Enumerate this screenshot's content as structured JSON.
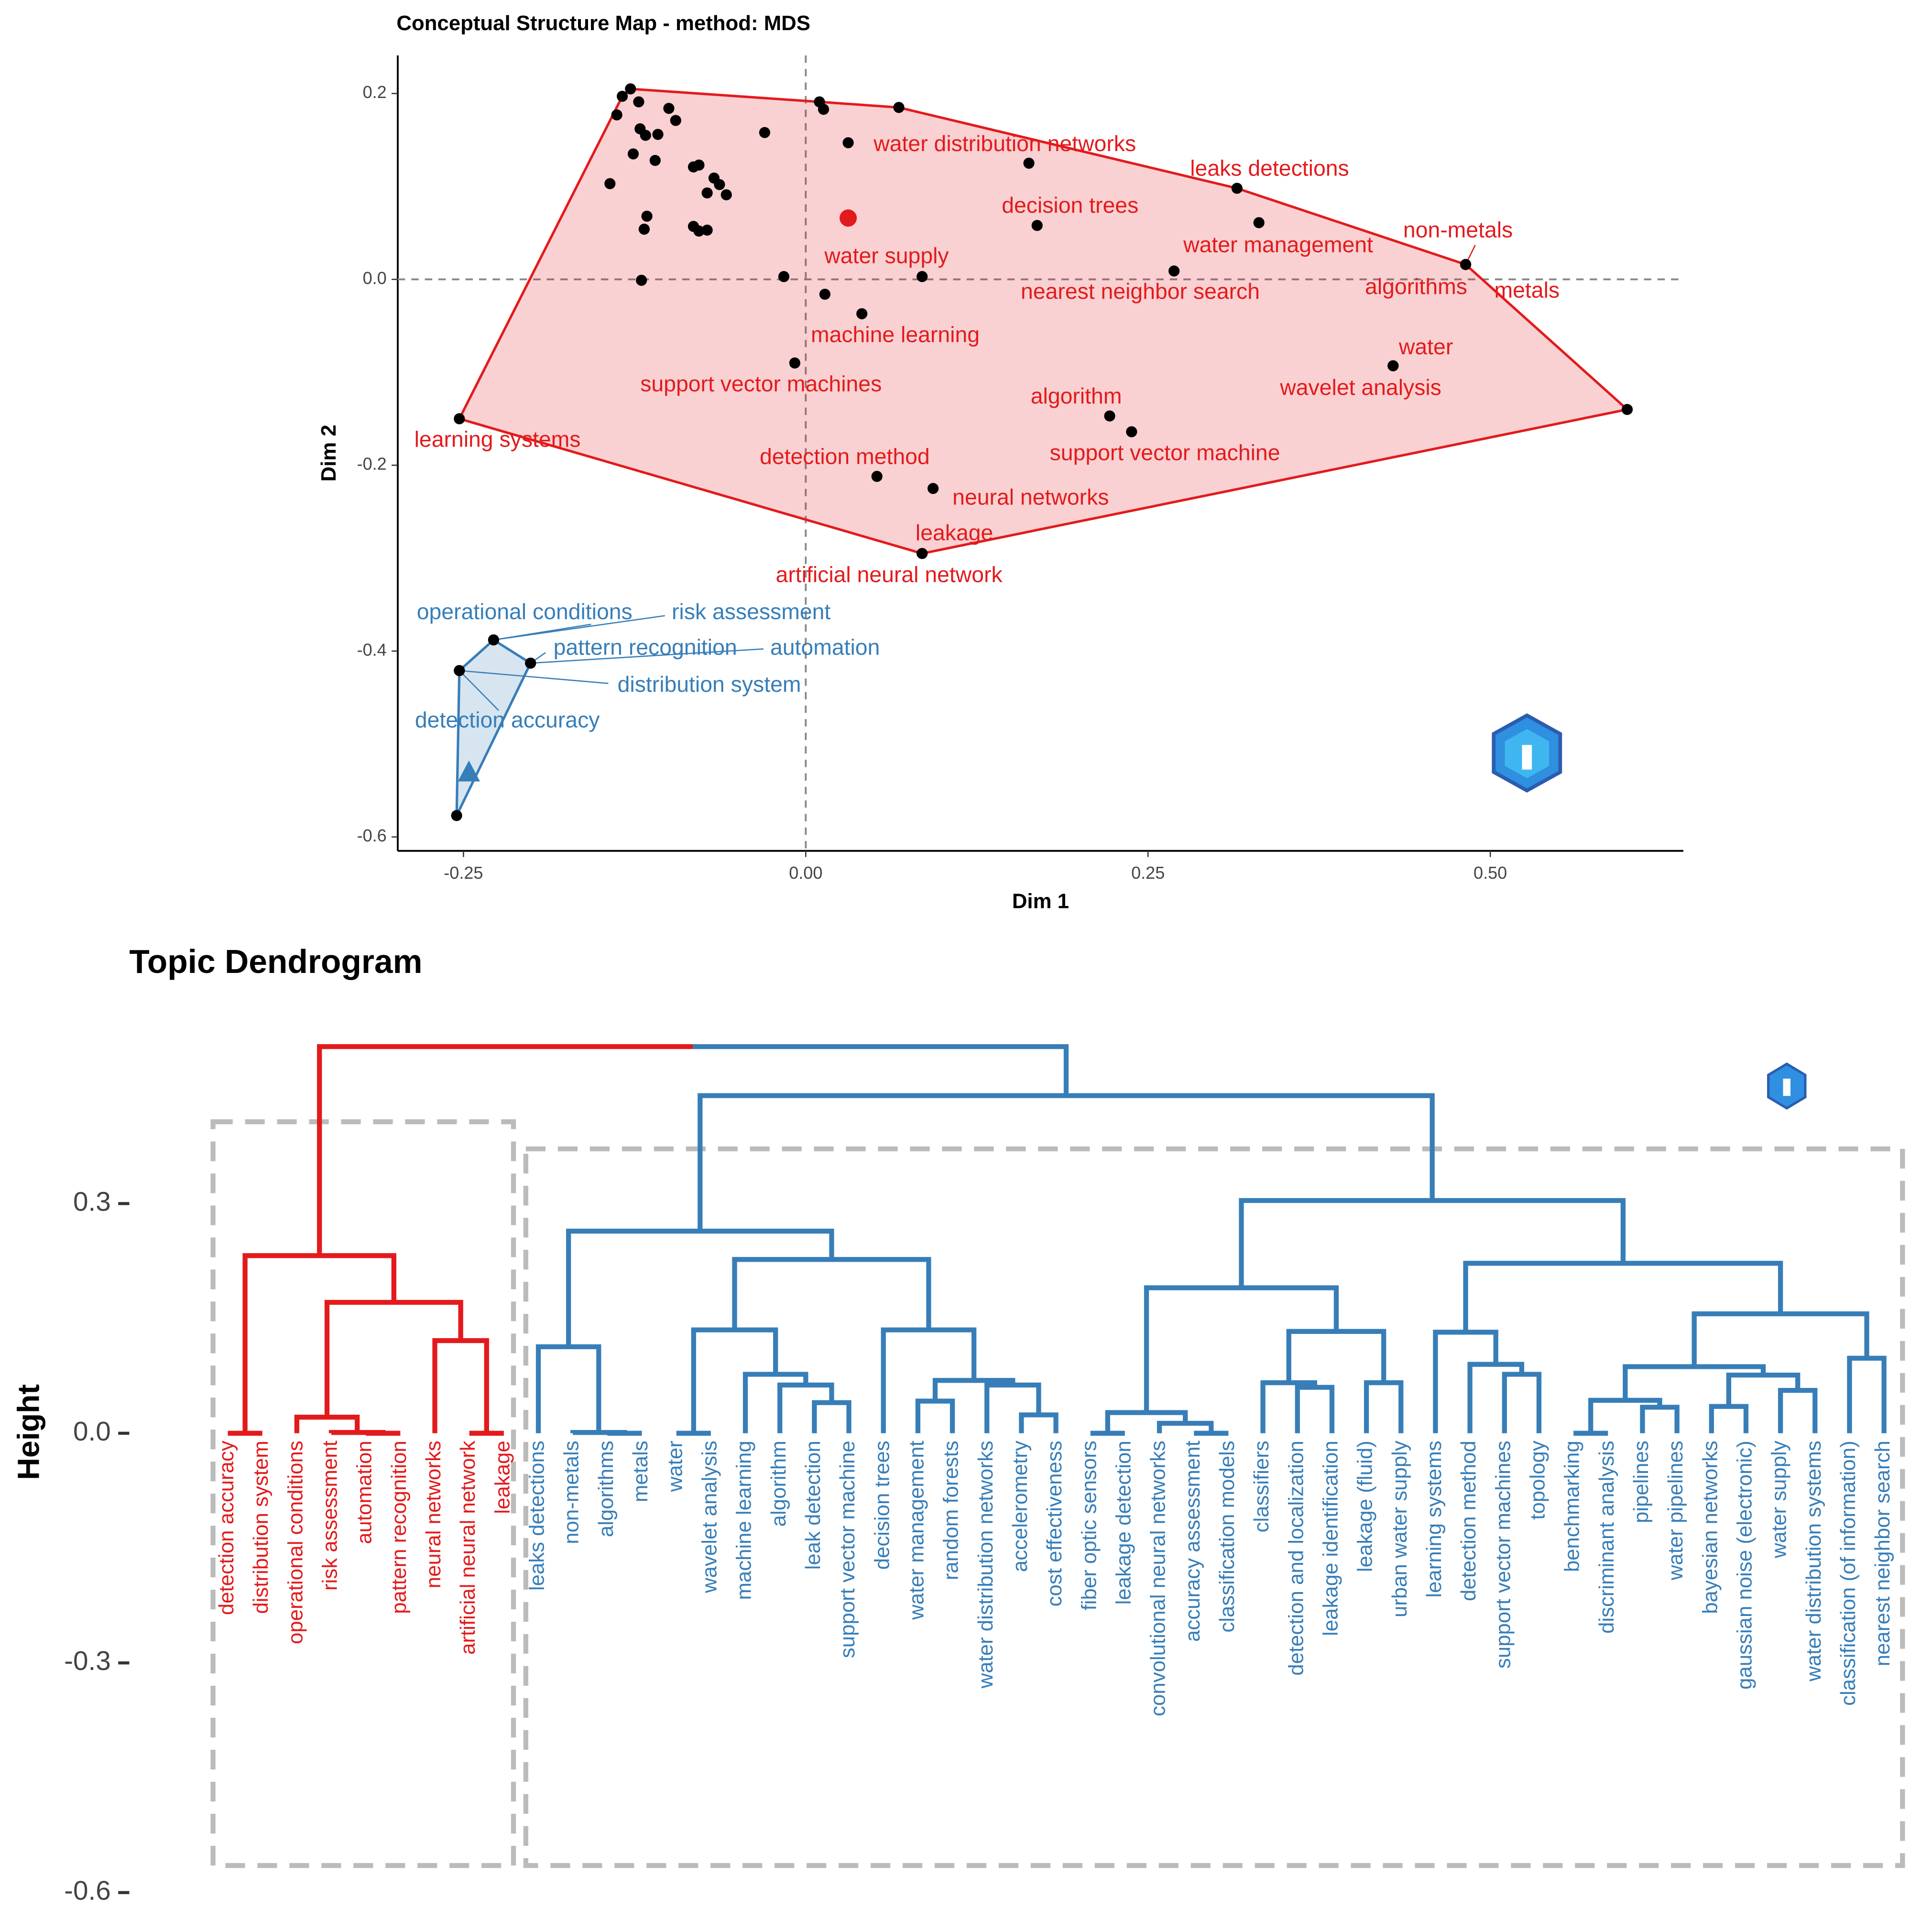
{
  "chart_data": [
    {
      "type": "scatter",
      "title": "Conceptual Structure Map - method: MDS",
      "x_label": "Dim 1",
      "y_label": "Dim 2",
      "xlim": [
        -0.298,
        0.641
      ],
      "ylim": [
        -0.615,
        0.241
      ],
      "xticks": [
        -0.25,
        {
          "value": 0,
          "label": "0.00"
        },
        0.25,
        {
          "value": 0.5,
          "label": "0.50"
        }
      ],
      "yticks": [
        -0.6,
        -0.4,
        -0.2,
        {
          "value": 0,
          "label": "0.0"
        },
        0.2
      ],
      "vline": 0,
      "hline": 0,
      "series": [
        {
          "color": "#e31a1c",
          "centroid_marker": "circle",
          "centroid_x": 0.031,
          "centroid_y": 0.066,
          "x": [
            -0.128,
            -0.134,
            -0.122,
            -0.138,
            -0.1,
            -0.095,
            -0.121,
            -0.117,
            -0.108,
            -0.126,
            -0.11,
            -0.082,
            -0.078,
            -0.067,
            -0.063,
            -0.072,
            -0.058,
            -0.143,
            -0.116,
            -0.118,
            -0.082,
            -0.078,
            -0.072,
            -0.12,
            -0.03,
            0.01,
            0.013,
            0.068,
            0.163,
            -0.016,
            0.014,
            0.6,
            0.031,
            0.315,
            0.169,
            0.331,
            0.269,
            0.482,
            0.482,
            0.482,
            0.085,
            0.041,
            -0.008,
            0.429,
            0.429,
            0.222,
            0.238,
            -0.253,
            0.052,
            0.093,
            0.085,
            0.085
          ],
          "y": [
            0.205,
            0.197,
            0.191,
            0.177,
            0.184,
            0.171,
            0.162,
            0.155,
            0.156,
            0.135,
            0.128,
            0.121,
            0.123,
            0.109,
            0.102,
            0.093,
            0.091,
            0.103,
            0.068,
            0.054,
            0.057,
            0.052,
            0.053,
            -0.001,
            0.158,
            0.191,
            0.183,
            0.185,
            0.125,
            0.003,
            -0.016,
            -0.14,
            0.147,
            0.098,
            0.058,
            0.061,
            0.009,
            0.016,
            0.016,
            0.016,
            0.003,
            -0.037,
            -0.09,
            -0.093,
            -0.093,
            -0.147,
            -0.164,
            -0.15,
            -0.212,
            -0.225,
            -0.295,
            -0.295
          ],
          "labels": [
            null,
            null,
            null,
            null,
            null,
            null,
            null,
            null,
            null,
            null,
            null,
            null,
            null,
            null,
            null,
            null,
            null,
            null,
            null,
            null,
            null,
            null,
            null,
            null,
            null,
            null,
            null,
            null,
            null,
            null,
            null,
            null,
            "water distribution networks",
            "leaks detections",
            "decision trees",
            "water management",
            "nearest neighbor search",
            "non-metals",
            "algorithms",
            "metals",
            "water supply",
            "machine learning",
            "support vector machines",
            "water",
            "wavelet analysis",
            "algorithm",
            "support vector machine",
            "learning systems",
            "detection method",
            "neural networks",
            "leakage",
            "artificial neural network"
          ]
        },
        {
          "color": "#377eb8",
          "centroid_marker": "triangle",
          "centroid_x": -0.246,
          "centroid_y": -0.531,
          "x": [
            -0.228,
            -0.228,
            -0.201,
            -0.201,
            -0.253,
            -0.253,
            -0.255
          ],
          "y": [
            -0.388,
            -0.388,
            -0.413,
            -0.413,
            -0.421,
            -0.421,
            -0.577
          ],
          "labels": [
            "operational conditions",
            "risk assessment",
            "pattern recognition",
            "automation",
            "distribution system",
            "detection accuracy",
            null
          ]
        }
      ]
    },
    {
      "type": "dendrogram",
      "title": "Topic Dendrogram",
      "y_label": "Height",
      "ylim": [
        -0.6,
        0.55
      ],
      "yticks": [
        -0.6,
        -0.3,
        {
          "value": 0,
          "label": "0.0"
        },
        0.3
      ],
      "colors": [
        "#e31a1c",
        "#377eb8"
      ],
      "tree": {
        "height": 0.505,
        "children": [
          {
            "height": 0.232,
            "children": [
              {
                "height": 0,
                "children": [
                  {
                    "label": "detection accuracy"
                  },
                  {
                    "label": "distribution system"
                  }
                ]
              },
              {
                "height": 0.171,
                "children": [
                  {
                    "height": 0.021,
                    "children": [
                      {
                        "label": "operational conditions"
                      },
                      {
                        "height": 0.001,
                        "children": [
                          {
                            "label": "risk assessment"
                          },
                          {
                            "height": 0,
                            "children": [
                              {
                                "label": "automation"
                              },
                              {
                                "label": "pattern recognition"
                              }
                            ]
                          }
                        ]
                      }
                    ]
                  },
                  {
                    "height": 0.121,
                    "children": [
                      {
                        "label": "neural networks"
                      },
                      {
                        "height": 0,
                        "children": [
                          {
                            "label": "artificial neural network"
                          },
                          {
                            "label": "leakage"
                          }
                        ]
                      }
                    ]
                  }
                ]
              }
            ]
          },
          {
            "height": 0.441,
            "children": [
              {
                "height": 0.264,
                "children": [
                  {
                    "height": 0.113,
                    "children": [
                      {
                        "label": "leaks detections"
                      },
                      {
                        "height": 0.001,
                        "children": [
                          {
                            "label": "non-metals"
                          },
                          {
                            "height": 0,
                            "children": [
                              {
                                "label": "algorithms"
                              },
                              {
                                "label": "metals"
                              }
                            ]
                          }
                        ]
                      }
                    ]
                  },
                  {
                    "height": 0.227,
                    "children": [
                      {
                        "height": 0.135,
                        "children": [
                          {
                            "height": 0,
                            "children": [
                              {
                                "label": "water"
                              },
                              {
                                "label": "wavelet analysis"
                              }
                            ]
                          },
                          {
                            "height": 0.077,
                            "children": [
                              {
                                "label": "machine learning"
                              },
                              {
                                "height": 0.063,
                                "children": [
                                  {
                                    "label": "algorithm"
                                  },
                                  {
                                    "height": 0.04,
                                    "children": [
                                      {
                                        "label": "leak detection"
                                      },
                                      {
                                        "label": "support vector machine"
                                      }
                                    ]
                                  }
                                ]
                              }
                            ]
                          }
                        ]
                      },
                      {
                        "height": 0.135,
                        "children": [
                          {
                            "label": "decision trees"
                          },
                          {
                            "height": 0.069,
                            "children": [
                              {
                                "height": 0.042,
                                "children": [
                                  {
                                    "label": "water management"
                                  },
                                  {
                                    "label": "random forests"
                                  }
                                ]
                              },
                              {
                                "height": 0.063,
                                "children": [
                                  {
                                    "label": "water distribution networks"
                                  },
                                  {
                                    "height": 0.024,
                                    "children": [
                                      {
                                        "label": "accelerometry"
                                      },
                                      {
                                        "label": "cost effectiveness"
                                      }
                                    ]
                                  }
                                ]
                              }
                            ]
                          }
                        ]
                      }
                    ]
                  }
                ]
              },
              {
                "height": 0.304,
                "children": [
                  {
                    "height": 0.19,
                    "children": [
                      {
                        "height": 0.027,
                        "children": [
                          {
                            "height": 0,
                            "children": [
                              {
                                "label": "fiber optic sensors"
                              },
                              {
                                "label": "leakage detection"
                              }
                            ]
                          },
                          {
                            "height": 0.013,
                            "children": [
                              {
                                "label": "convolutional neural networks"
                              },
                              {
                                "height": 0,
                                "children": [
                                  {
                                    "label": "accuracy assessment"
                                  },
                                  {
                                    "label": "classification models"
                                  }
                                ]
                              }
                            ]
                          }
                        ]
                      },
                      {
                        "height": 0.133,
                        "children": [
                          {
                            "height": 0.066,
                            "children": [
                              {
                                "label": "classifiers"
                              },
                              {
                                "height": 0.06,
                                "children": [
                                  {
                                    "label": "detection and localization"
                                  },
                                  {
                                    "label": "leakage identification"
                                  }
                                ]
                              }
                            ]
                          },
                          {
                            "height": 0.066,
                            "children": [
                              {
                                "label": "leakage (fluid)"
                              },
                              {
                                "label": "urban water supply"
                              }
                            ]
                          }
                        ]
                      }
                    ]
                  },
                  {
                    "height": 0.222,
                    "children": [
                      {
                        "height": 0.132,
                        "children": [
                          {
                            "label": "learning systems"
                          },
                          {
                            "height": 0.09,
                            "children": [
                              {
                                "label": "detection method"
                              },
                              {
                                "height": 0.077,
                                "children": [
                                  {
                                    "label": "support vector machines"
                                  },
                                  {
                                    "label": "topology"
                                  }
                                ]
                              }
                            ]
                          }
                        ]
                      },
                      {
                        "height": 0.156,
                        "children": [
                          {
                            "height": 0.087,
                            "children": [
                              {
                                "height": 0.043,
                                "children": [
                                  {
                                    "height": 0,
                                    "children": [
                                      {
                                        "label": "benchmarking"
                                      },
                                      {
                                        "label": "discriminant analysis"
                                      }
                                    ]
                                  },
                                  {
                                    "height": 0.034,
                                    "children": [
                                      {
                                        "label": "pipelines"
                                      },
                                      {
                                        "label": "water pipelines"
                                      }
                                    ]
                                  }
                                ]
                              },
                              {
                                "height": 0.076,
                                "children": [
                                  {
                                    "height": 0.035,
                                    "children": [
                                      {
                                        "label": "bayesian networks"
                                      },
                                      {
                                        "label": "gaussian noise (electronic)"
                                      }
                                    ]
                                  },
                                  {
                                    "height": 0.056,
                                    "children": [
                                      {
                                        "label": "water supply"
                                      },
                                      {
                                        "label": "water distribution systems"
                                      }
                                    ]
                                  }
                                ]
                              }
                            ]
                          },
                          {
                            "height": 0.098,
                            "children": [
                              {
                                "label": "classification (of information)"
                              },
                              {
                                "label": "nearest neighbor search"
                              }
                            ]
                          }
                        ]
                      }
                    ]
                  }
                ]
              }
            ]
          }
        ]
      }
    }
  ]
}
